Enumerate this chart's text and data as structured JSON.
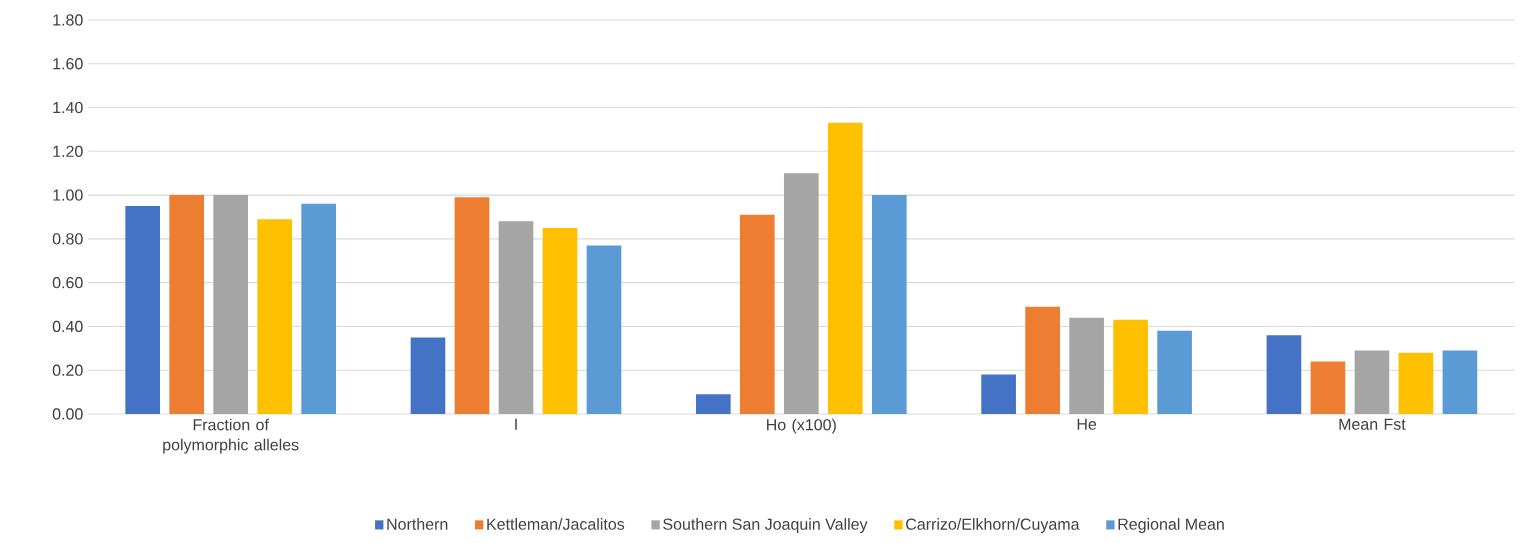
{
  "chart_data": {
    "type": "bar",
    "categories": [
      "Fraction of polymorphic alleles",
      "I",
      "Ho (x100)",
      "He",
      "Mean Fst"
    ],
    "series": [
      {
        "name": "Northern",
        "color": "#4472c4",
        "values": [
          0.95,
          0.35,
          0.09,
          0.18,
          0.36
        ]
      },
      {
        "name": "Kettleman/Jacalitos",
        "color": "#ed7d31",
        "values": [
          1.0,
          0.99,
          0.91,
          0.49,
          0.24
        ]
      },
      {
        "name": "Southern San Joaquin Valley",
        "color": "#a5a5a5",
        "values": [
          1.0,
          0.88,
          1.1,
          0.44,
          0.29
        ]
      },
      {
        "name": "Carrizo/Elkhorn/Cuyama",
        "color": "#ffc000",
        "values": [
          0.89,
          0.85,
          1.33,
          0.43,
          0.28
        ]
      },
      {
        "name": "Regional Mean",
        "color": "#5b9bd5",
        "values": [
          0.96,
          0.77,
          1.0,
          0.38,
          0.29
        ]
      }
    ],
    "ylim": [
      0,
      1.8
    ],
    "yticks": [
      {
        "value": 0,
        "label": "0.00"
      },
      {
        "value": 0.2,
        "label": "0.20"
      },
      {
        "value": 0.4,
        "label": "0.40"
      },
      {
        "value": 0.6,
        "label": "0.60"
      },
      {
        "value": 0.8,
        "label": "0.80"
      },
      {
        "value": 1.0,
        "label": "1.00"
      },
      {
        "value": 1.2,
        "label": "1.20"
      },
      {
        "value": 1.4,
        "label": "1.40"
      },
      {
        "value": 1.6,
        "label": "1.60"
      },
      {
        "value": 1.8,
        "label": "1.80"
      }
    ],
    "grid": "y",
    "legend": "bottom"
  }
}
